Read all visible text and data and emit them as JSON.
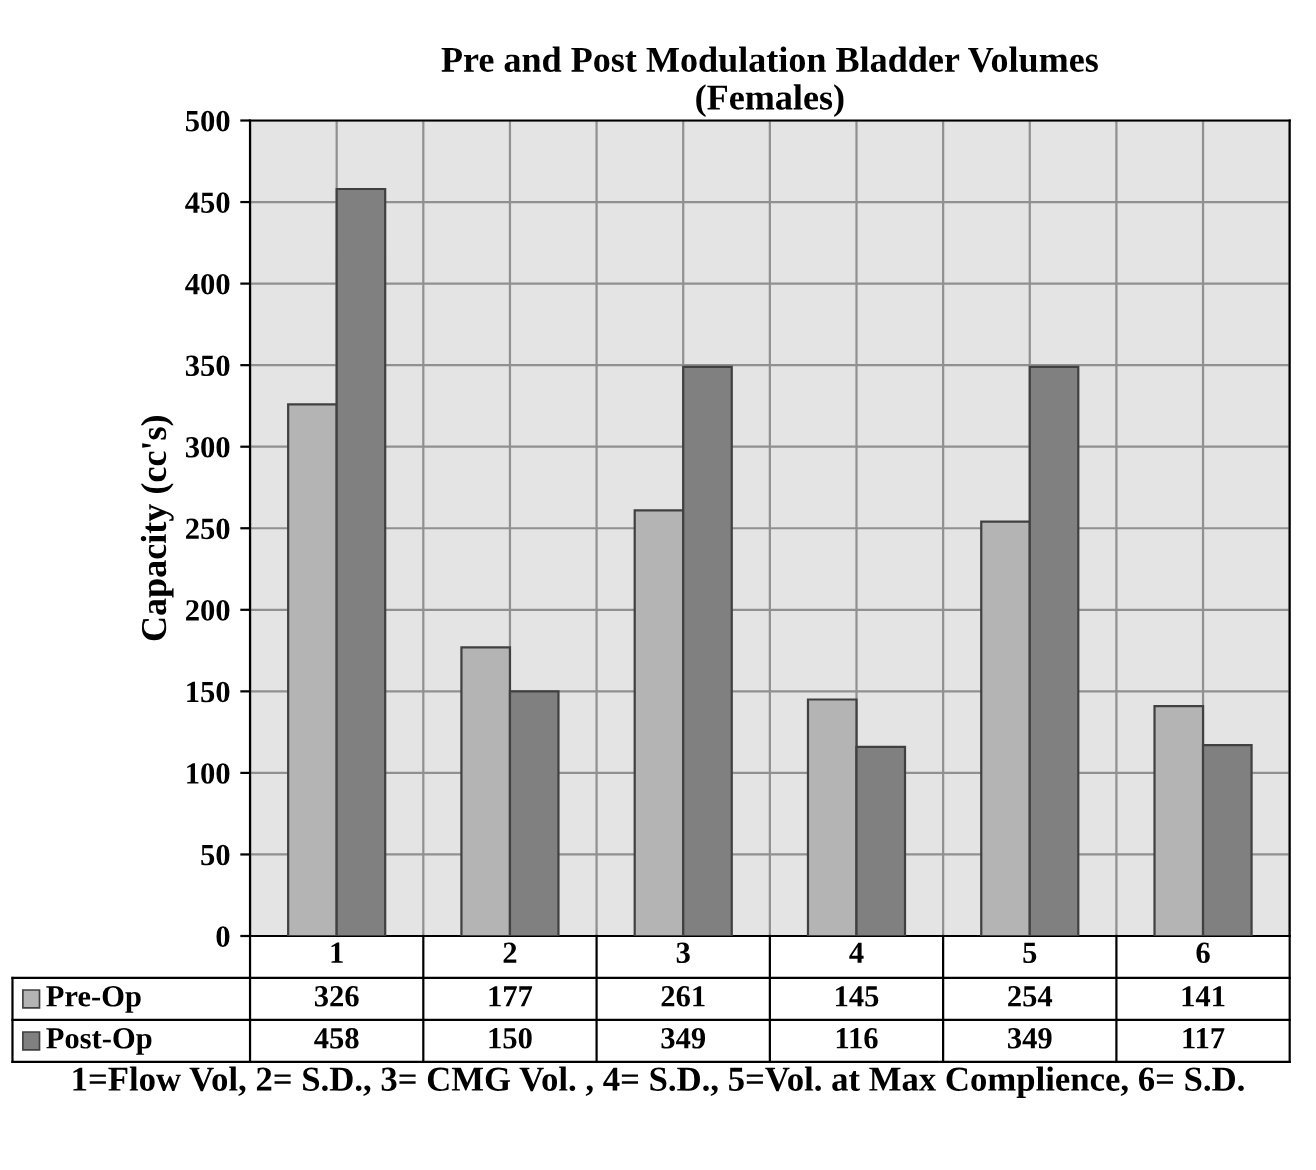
{
  "chart_data": {
    "type": "bar",
    "title": "Pre and Post Modulation Bladder Volumes\n(Females)",
    "ylabel": "Capacity (cc's)",
    "categories": [
      "1",
      "2",
      "3",
      "4",
      "5",
      "6"
    ],
    "series": [
      {
        "name": "Pre-Op",
        "color": "#b4b4b4",
        "values": [
          326,
          177,
          261,
          145,
          254,
          141
        ]
      },
      {
        "name": "Post-Op",
        "color": "#808080",
        "values": [
          458,
          150,
          349,
          116,
          349,
          117
        ]
      }
    ],
    "ylim": [
      0,
      500
    ],
    "yticks": [
      0,
      50,
      100,
      150,
      200,
      250,
      300,
      350,
      400,
      450,
      500
    ],
    "grid": true,
    "data_labels": true,
    "legend": "bottom",
    "annotations": [
      "1=Flow Vol, 2= S.D., 3= CMG Vol. , 4= S.D., 5=Vol. at Max Complience, 6= S.D."
    ]
  }
}
